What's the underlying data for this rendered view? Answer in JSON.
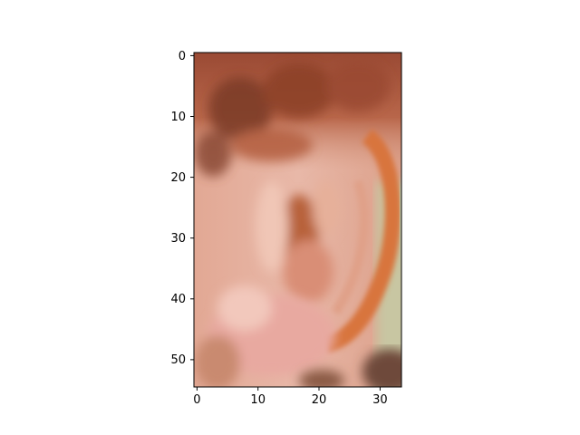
{
  "image": {
    "subject": "close-up of an ear",
    "palette": {
      "hair_dark": "#7a3a26",
      "hair_mid": "#a8553a",
      "skin_light": "#e8b8a8",
      "skin_mid": "#d9967e",
      "skin_pink": "#e8a9a0",
      "helix_orange": "#d8743e",
      "canal_shadow": "#b8623a",
      "background_green": "#c8c6a2",
      "bottom_shadow": "#6e4a3a"
    }
  },
  "axes": {
    "x_ticks": [
      "0",
      "10",
      "20",
      "30"
    ],
    "y_ticks": [
      "0",
      "10",
      "20",
      "30",
      "40",
      "50"
    ],
    "xlim": [
      -0.5,
      33.5
    ],
    "ylim": [
      54.5,
      -0.5
    ]
  }
}
